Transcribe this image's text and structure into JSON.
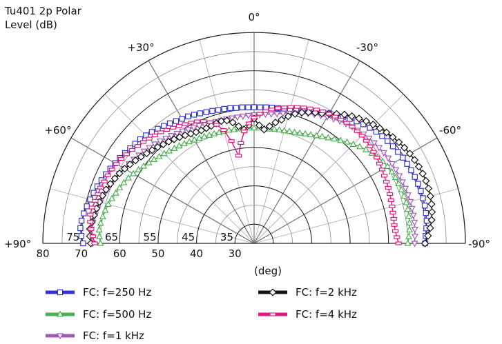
{
  "chart_data": {
    "type": "polar",
    "title": "Tu401 2p Polar",
    "subtitle": "Level  (dB)",
    "x_unit_label": "(deg)",
    "r_range": [
      25,
      80
    ],
    "radial_tick_labels": [
      "80",
      "70",
      "60",
      "50",
      "40",
      "30"
    ],
    "ring_labels": [
      "75",
      "65",
      "55",
      "45",
      "35"
    ],
    "angle_labels": [
      {
        "angle": 0,
        "label": "0°"
      },
      {
        "angle": 30,
        "label": "+30°"
      },
      {
        "angle": -30,
        "label": "-30°"
      },
      {
        "angle": 60,
        "label": "+60°"
      },
      {
        "angle": -60,
        "label": "-60°"
      },
      {
        "angle": 90,
        "label": "+90°"
      },
      {
        "angle": -90,
        "label": "-90°"
      }
    ],
    "angles": [
      90,
      87.5,
      85,
      82.5,
      80,
      77.5,
      75,
      72.5,
      70,
      67.5,
      65,
      62.5,
      60,
      57.5,
      55,
      52.5,
      50,
      47.5,
      45,
      42.5,
      40,
      37.5,
      35,
      32.5,
      30,
      27.5,
      25,
      22.5,
      20,
      17.5,
      15,
      12.5,
      10,
      7.5,
      5,
      2.5,
      0,
      -2.5,
      -5,
      -7.5,
      -10,
      -12.5,
      -15,
      -17.5,
      -20,
      -22.5,
      -25,
      -27.5,
      -30,
      -32.5,
      -35,
      -37.5,
      -40,
      -42.5,
      -45,
      -47.5,
      -50,
      -52.5,
      -55,
      -57.5,
      -60,
      -62.5,
      -65,
      -67.5,
      -70,
      -72.5,
      -75,
      -77.5,
      -80,
      -82.5,
      -85,
      -87.5,
      -90
    ],
    "series": [
      {
        "name": "FC: f=250 Hz",
        "color": "#3333cc",
        "marker": "square",
        "values": [
          69.5,
          70.0,
          70.4,
          70.3,
          70.0,
          69.6,
          69.2,
          68.8,
          68.4,
          68.0,
          67.6,
          67.2,
          66.8,
          66.4,
          66.0,
          65.7,
          65.4,
          65.2,
          64.8,
          64.4,
          64.0,
          63.6,
          63.2,
          62.8,
          62.5,
          62.3,
          62.0,
          61.7,
          61.4,
          61.2,
          61.0,
          60.9,
          60.8,
          60.6,
          60.6,
          60.5,
          60.5,
          60.5,
          60.6,
          60.7,
          60.8,
          61.0,
          61.2,
          61.5,
          61.9,
          62.4,
          62.9,
          63.5,
          64.1,
          64.7,
          65.3,
          65.9,
          66.5,
          67.1,
          67.6,
          68.1,
          68.5,
          68.8,
          69.1,
          69.4,
          69.7,
          69.9,
          70.1,
          70.3,
          70.4,
          70.5,
          70.5,
          70.5,
          70.4,
          70.3,
          70.0,
          69.7,
          69.5
        ]
      },
      {
        "name": "FC: f=500 Hz",
        "color": "#4caf50",
        "marker": "triangle-up",
        "values": [
          65.0,
          65.3,
          65.5,
          65.3,
          65.0,
          64.7,
          64.3,
          63.8,
          63.3,
          62.9,
          62.4,
          61.9,
          61.3,
          60.7,
          60.1,
          59.5,
          59.0,
          58.5,
          58.1,
          57.7,
          57.3,
          57.0,
          56.7,
          56.4,
          56.1,
          55.9,
          55.7,
          55.5,
          55.4,
          55.3,
          55.2,
          55.2,
          55.1,
          55.1,
          55.1,
          55.1,
          55.1,
          55.1,
          55.1,
          55.1,
          55.2,
          55.3,
          55.4,
          55.6,
          55.8,
          56.1,
          56.5,
          56.9,
          57.4,
          58.0,
          58.6,
          59.3,
          60.0,
          60.8,
          61.5,
          62.3,
          63.0,
          63.6,
          64.2,
          64.7,
          65.1,
          65.4,
          65.6,
          65.7,
          65.8,
          65.9,
          66.0,
          66.0,
          65.9,
          65.8,
          65.6,
          65.3,
          65.0
        ]
      },
      {
        "name": "FC: f=1 kHz",
        "color": "#a05cb8",
        "marker": "triangle-down",
        "values": [
          67.0,
          67.3,
          67.5,
          67.3,
          67.0,
          66.7,
          66.4,
          66.1,
          65.7,
          65.3,
          64.9,
          64.5,
          64.0,
          63.6,
          63.2,
          62.8,
          62.4,
          62.0,
          61.6,
          61.2,
          60.8,
          60.4,
          60.0,
          59.7,
          59.3,
          59.0,
          58.8,
          58.6,
          58.4,
          58.3,
          58.2,
          58.2,
          58.2,
          58.2,
          58.3,
          58.4,
          58.5,
          58.6,
          58.8,
          59.0,
          59.3,
          59.7,
          60.1,
          60.6,
          61.1,
          61.6,
          62.1,
          62.6,
          63.1,
          63.5,
          63.9,
          64.3,
          64.7,
          65.0,
          65.3,
          65.6,
          65.8,
          66.0,
          66.2,
          66.4,
          66.5,
          66.6,
          66.7,
          66.8,
          66.9,
          67.0,
          67.1,
          67.1,
          67.1,
          67.1,
          67.0,
          66.9,
          66.8
        ]
      },
      {
        "name": "FC: f=2 kHz",
        "color": "#111111",
        "marker": "diamond",
        "values": [
          67.5,
          67.8,
          67.9,
          67.6,
          67.3,
          67.0,
          66.7,
          66.4,
          66.0,
          65.5,
          65.0,
          64.5,
          63.9,
          63.3,
          62.7,
          62.1,
          61.5,
          61.0,
          60.5,
          60.0,
          59.6,
          59.2,
          58.8,
          58.4,
          58.0,
          57.7,
          57.5,
          57.5,
          57.6,
          57.8,
          58.0,
          57.8,
          57.0,
          55.8,
          54.8,
          55.8,
          57.5,
          55.8,
          54.8,
          55.8,
          57.0,
          58.0,
          59.3,
          60.4,
          61.3,
          62.0,
          62.6,
          63.2,
          64.0,
          65.0,
          66.0,
          66.8,
          67.5,
          68.2,
          68.8,
          69.4,
          70.0,
          70.5,
          71.0,
          71.4,
          71.8,
          72.1,
          72.3,
          72.5,
          72.6,
          72.6,
          72.5,
          72.3,
          72.0,
          71.6,
          71.0,
          70.3,
          69.5
        ]
      },
      {
        "name": "FC: f=4 kHz",
        "color": "#e6197a",
        "marker": "rect",
        "values": [
          66.5,
          67.0,
          67.6,
          68.0,
          68.3,
          68.2,
          67.8,
          67.6,
          67.5,
          67.2,
          67.0,
          66.7,
          66.4,
          66.0,
          65.5,
          65.0,
          64.5,
          64.1,
          63.6,
          63.2,
          62.8,
          62.3,
          61.8,
          61.3,
          60.9,
          60.5,
          60.1,
          59.5,
          58.6,
          57.4,
          55.6,
          52.3,
          48.2,
          51.4,
          54.3,
          56.3,
          57.8,
          58.8,
          59.6,
          60.2,
          60.8,
          61.3,
          61.8,
          62.3,
          62.7,
          63.1,
          63.5,
          63.8,
          64.0,
          64.2,
          64.4,
          64.6,
          64.7,
          64.7,
          64.7,
          64.6,
          64.4,
          64.2,
          64.0,
          63.7,
          63.5,
          63.2,
          63.0,
          62.8,
          62.6,
          62.4,
          62.2,
          62.0,
          61.9,
          61.8,
          61.9,
          62.2,
          62.6
        ]
      }
    ]
  }
}
